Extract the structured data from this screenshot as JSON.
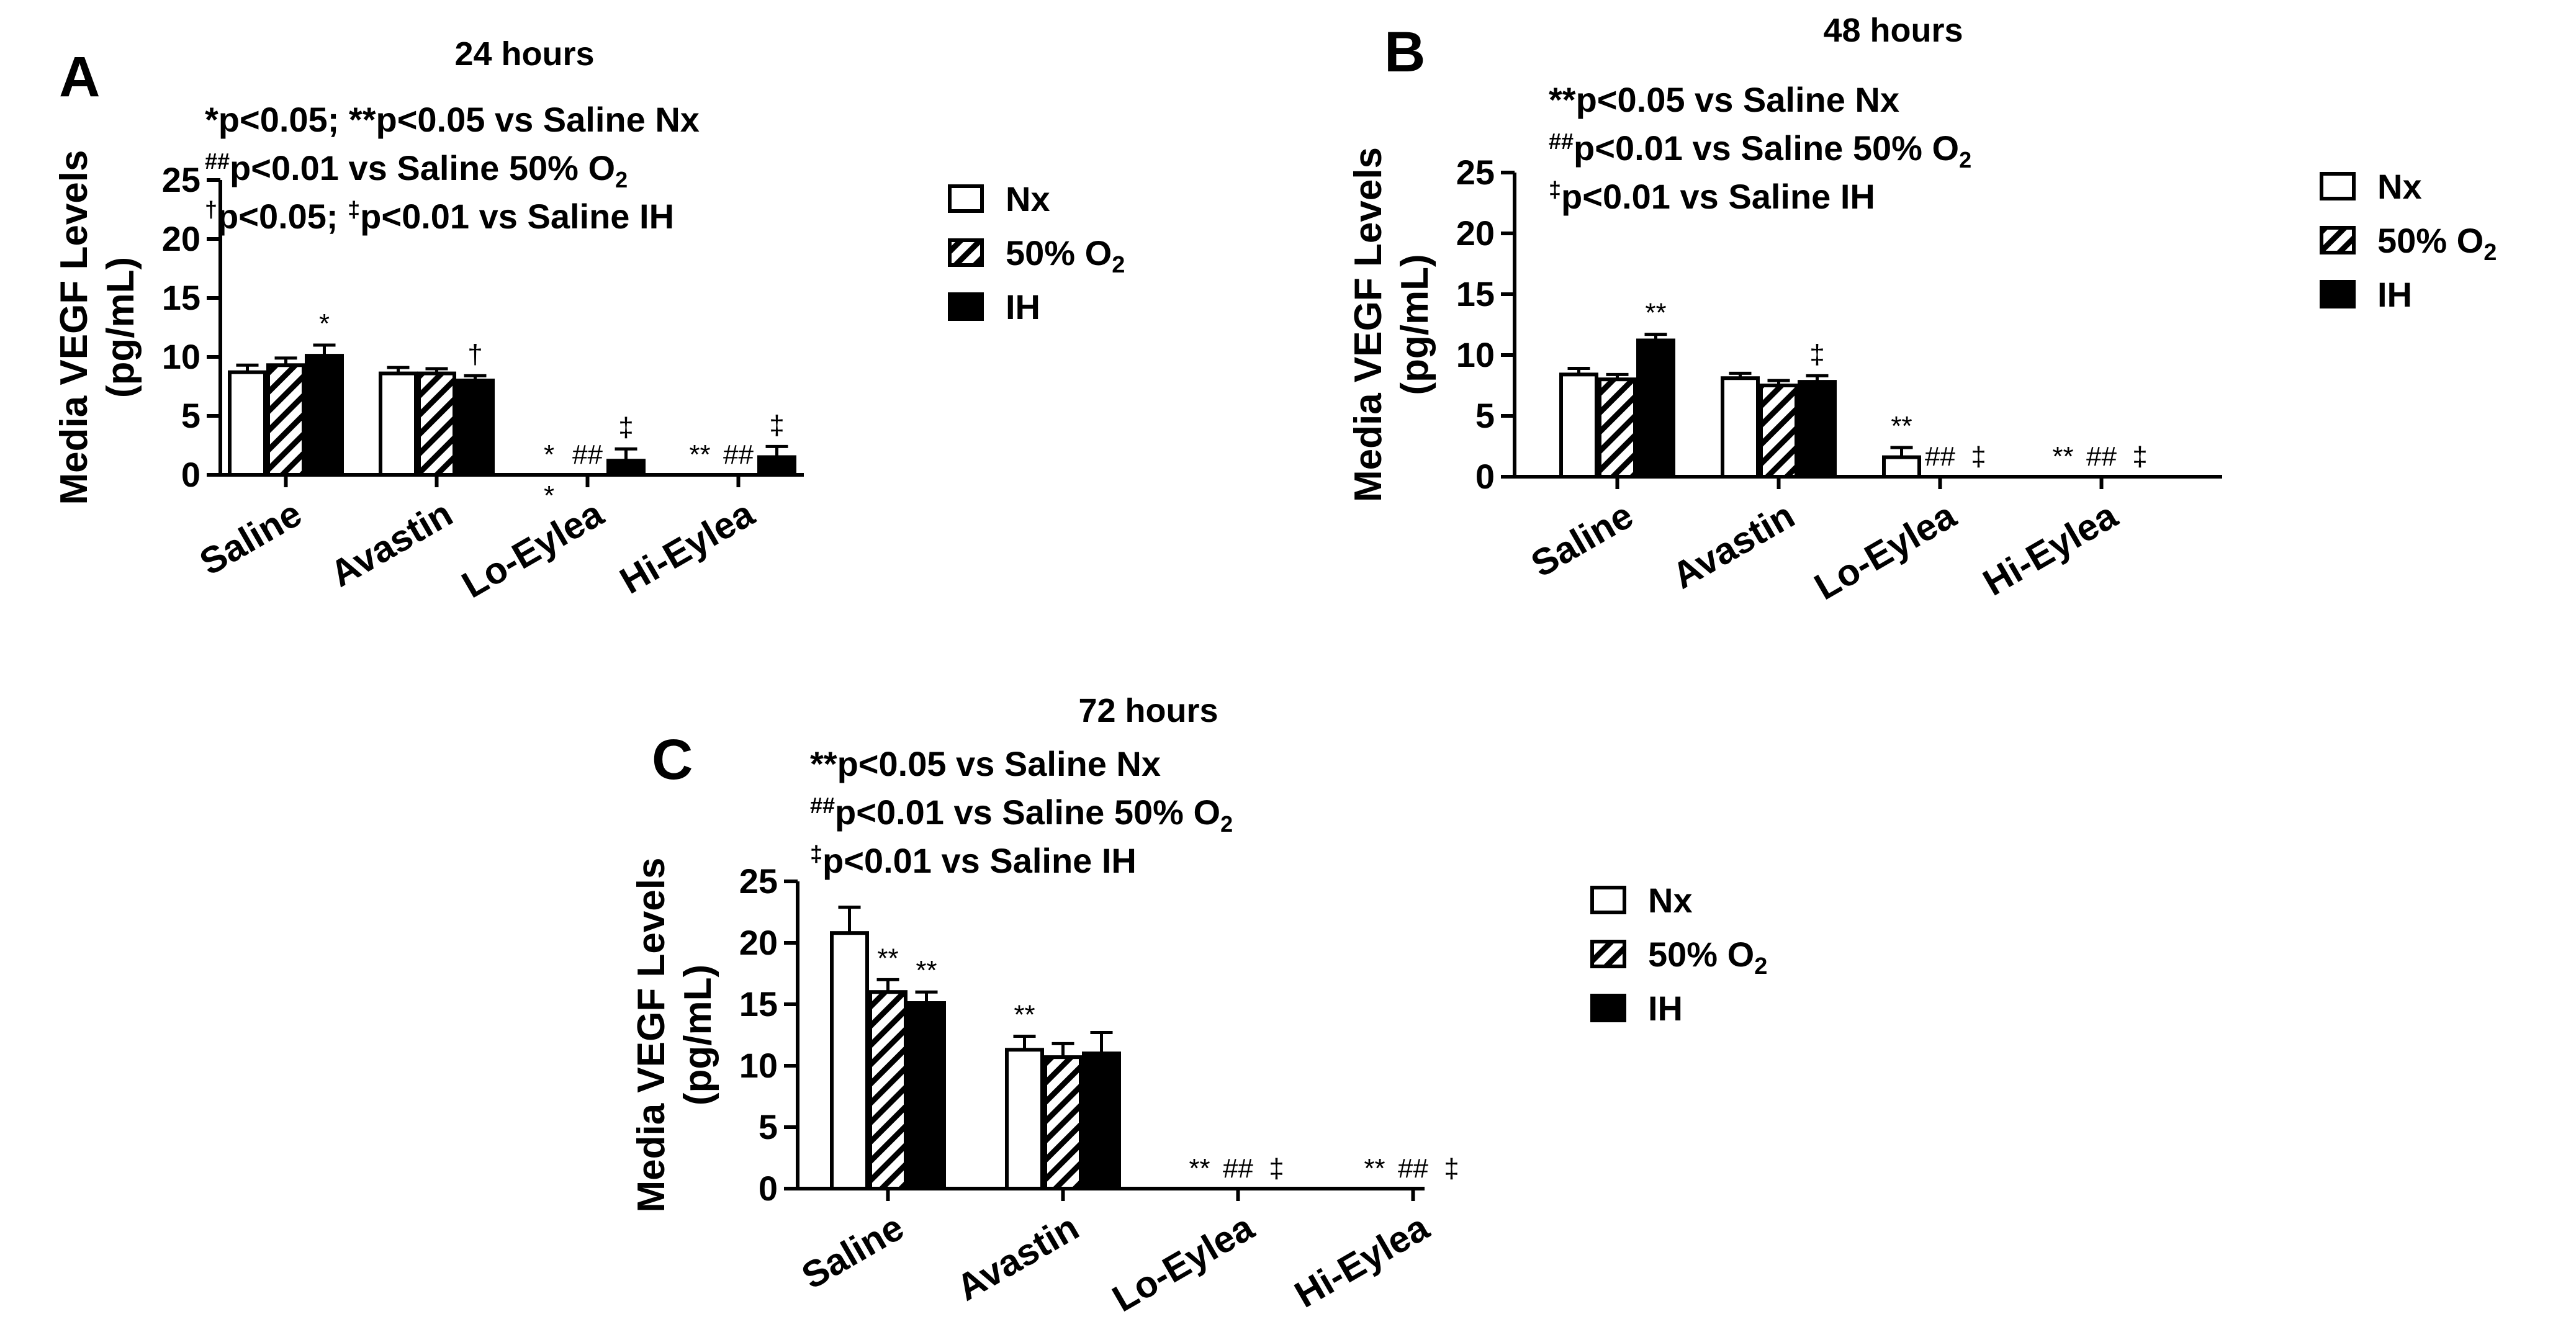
{
  "chart_data": [
    {
      "panel_letter": "A",
      "type": "bar",
      "title": "24 hours",
      "ylabel_line1": "Media VEGF Levels",
      "ylabel_line2": "(pg/mL)",
      "ylim": [
        0,
        25
      ],
      "yticks": [
        "0",
        "5",
        "10",
        "15",
        "20",
        "25"
      ],
      "categories": [
        "Saline",
        "Avastin",
        "Lo-Eylea",
        "Hi-Eylea"
      ],
      "series": [
        {
          "name": "Nx",
          "values": [
            8.7,
            8.6,
            0,
            0
          ],
          "errors": [
            0.6,
            0.5,
            0,
            0
          ],
          "marks": [
            "",
            "",
            "*",
            "**"
          ]
        },
        {
          "name": "50% O2",
          "values": [
            9.3,
            8.6,
            0,
            0
          ],
          "errors": [
            0.6,
            0.4,
            0,
            0
          ],
          "marks": [
            "",
            "",
            "##",
            "##"
          ]
        },
        {
          "name": "IH",
          "values": [
            10.1,
            8.0,
            1.2,
            1.5
          ],
          "errors": [
            0.9,
            0.4,
            1.0,
            0.9
          ],
          "marks": [
            "*",
            "†",
            "‡",
            "‡"
          ]
        }
      ],
      "extra_mark": "*",
      "stats": [
        {
          "sup": "",
          "text": "*p<0.05; **p<0.05 vs Saline Nx"
        },
        {
          "sup": "##",
          "text": "p<0.01 vs Saline 50% O",
          "sub": "2"
        },
        {
          "sup": "†",
          "text": "p<0.05; ",
          "sup2": "‡",
          "text2": "p<0.01 vs Saline IH"
        }
      ]
    },
    {
      "panel_letter": "B",
      "type": "bar",
      "title": "48 hours",
      "ylabel_line1": "Media VEGF Levels",
      "ylabel_line2": "(pg/mL)",
      "ylim": [
        0,
        25
      ],
      "yticks": [
        "0",
        "5",
        "10",
        "15",
        "20",
        "25"
      ],
      "categories": [
        "Saline",
        "Avastin",
        "Lo-Eylea",
        "Hi-Eylea"
      ],
      "series": [
        {
          "name": "Nx",
          "values": [
            8.4,
            8.1,
            1.6,
            0
          ],
          "errors": [
            0.5,
            0.4,
            0.8,
            0
          ],
          "marks": [
            "",
            "",
            "**",
            "**"
          ]
        },
        {
          "name": "50% O2",
          "values": [
            8.0,
            7.5,
            0,
            0
          ],
          "errors": [
            0.4,
            0.4,
            0,
            0
          ],
          "marks": [
            "",
            "",
            "##",
            "##"
          ]
        },
        {
          "name": "IH",
          "values": [
            11.2,
            7.8,
            0,
            0
          ],
          "errors": [
            0.5,
            0.5,
            0,
            0
          ],
          "marks": [
            "**",
            "‡",
            "‡",
            "‡"
          ]
        }
      ],
      "stats": [
        {
          "sup": "",
          "text": "**p<0.05 vs Saline Nx"
        },
        {
          "sup": "##",
          "text": "p<0.01 vs Saline 50% O",
          "sub": "2"
        },
        {
          "sup": "‡",
          "text": "p<0.01 vs Saline IH"
        }
      ]
    },
    {
      "panel_letter": "C",
      "type": "bar",
      "title": "72 hours",
      "ylabel_line1": "Media VEGF Levels",
      "ylabel_line2": "(pg/mL)",
      "ylim": [
        0,
        25
      ],
      "yticks": [
        "0",
        "5",
        "10",
        "15",
        "20",
        "25"
      ],
      "categories": [
        "Saline",
        "Avastin",
        "Lo-Eylea",
        "Hi-Eylea"
      ],
      "series": [
        {
          "name": "Nx",
          "values": [
            20.8,
            11.3,
            0,
            0
          ],
          "errors": [
            2.1,
            1.1,
            0,
            0
          ],
          "marks": [
            "",
            "**",
            "**",
            "**"
          ]
        },
        {
          "name": "50% O2",
          "values": [
            16.0,
            10.7,
            0,
            0
          ],
          "errors": [
            1.0,
            1.1,
            0,
            0
          ],
          "marks": [
            "**",
            "",
            "##",
            "##"
          ]
        },
        {
          "name": "IH",
          "values": [
            15.1,
            11.0,
            0,
            0
          ],
          "errors": [
            0.9,
            1.7,
            0,
            0
          ],
          "marks": [
            "**",
            "",
            "‡",
            "‡"
          ]
        }
      ],
      "stats": [
        {
          "sup": "",
          "text": "**p<0.05 vs Saline Nx"
        },
        {
          "sup": "##",
          "text": "p<0.01 vs Saline 50% O",
          "sub": "2"
        },
        {
          "sup": "‡",
          "text": "p<0.01 vs Saline IH"
        }
      ]
    }
  ],
  "legend": {
    "nx": "Nx",
    "o2": "50% O",
    "o2_sub": "2",
    "ih": "IH"
  }
}
